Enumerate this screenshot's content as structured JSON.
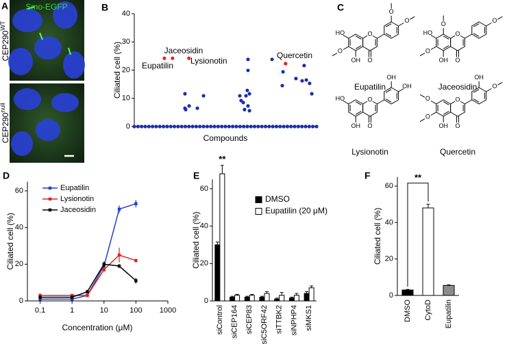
{
  "panel_labels": [
    "A",
    "B",
    "C",
    "D",
    "E",
    "F"
  ],
  "panel_a": {
    "stain": "Smo-EGFP",
    "rows": [
      {
        "gene": "CEP290",
        "genotype": "WT"
      },
      {
        "gene": "CEP290",
        "genotype": "null"
      }
    ]
  },
  "panel_c": {
    "molecules": [
      {
        "name": "Eupatilin",
        "atoms": [
          "HO",
          "O",
          "OH",
          "O",
          "O",
          "O",
          "O"
        ]
      },
      {
        "name": "Jaceosidin",
        "atoms": [
          "O",
          "HO",
          "O",
          "OH",
          "O",
          "O",
          "O"
        ]
      },
      {
        "name": "Lysionotin",
        "atoms": [
          "HO",
          "OH",
          "OH",
          "OH",
          "O",
          "O"
        ]
      },
      {
        "name": "Quercetin",
        "atoms": [
          "O",
          "O",
          "OH",
          "OH",
          "O",
          "O",
          "O"
        ]
      }
    ]
  },
  "chart_data": [
    {
      "type": "scatter",
      "ylabel": "Ciliated cell (%)",
      "xlabel": "Compounds",
      "xlim": [
        0,
        100
      ],
      "ylim": [
        0,
        40
      ],
      "yticks": [
        0,
        10,
        20,
        30,
        40
      ],
      "series": [
        {
          "color": "#1c2fa8",
          "x": [
            0,
            2,
            4,
            6,
            8,
            10,
            12,
            14,
            16,
            18,
            20,
            22,
            24,
            26,
            28,
            30,
            32,
            34,
            36,
            38,
            40,
            42,
            44,
            46,
            48,
            50,
            52,
            54,
            56,
            58,
            60,
            62,
            64,
            66,
            68,
            70,
            72,
            74,
            76,
            78,
            80,
            82,
            84,
            86,
            88,
            90,
            92,
            94,
            96,
            98,
            100,
            27.8,
            27.8,
            28.2,
            30.1,
            34.6,
            38,
            57.9,
            58.6,
            59.8,
            60.5,
            61.3,
            62,
            62.4,
            62.4,
            62.4,
            63.2,
            63.2,
            75.6,
            81.6,
            81.2,
            88.7,
            92.1,
            93.2,
            94.4,
            96.2,
            97.4
          ],
          "values": [
            0,
            0,
            0,
            0,
            0,
            0,
            0,
            0,
            0,
            0,
            0,
            0,
            0,
            0,
            0,
            0,
            0,
            0,
            0,
            0,
            0,
            0,
            0,
            0,
            0,
            0,
            0,
            0,
            0,
            0,
            0,
            0,
            0,
            0,
            0,
            0,
            0,
            0,
            0,
            0,
            0,
            0,
            0,
            0,
            0,
            0,
            0,
            0,
            0,
            0,
            0,
            11.6,
            6.5,
            6,
            7.3,
            6.5,
            10.9,
            10.9,
            9.2,
            8.5,
            6,
            10.9,
            12.8,
            23.8,
            19.9,
            7.3,
            5.6,
            11.6,
            23.8,
            19.4,
            14.5,
            17,
            16.2,
            21.6,
            16.5,
            15.3,
            11.6
          ]
        },
        {
          "color": "#e8202a",
          "x": [
            16.5,
            21,
            30,
            83
          ],
          "values": [
            24.2,
            24.2,
            24.2,
            22.3
          ]
        }
      ],
      "annotations": [
        "Jaceosidin",
        "Eupatilin",
        "Lysionotin",
        "Quercetin"
      ]
    },
    {
      "type": "line",
      "xlabel": "Concentration (μM)",
      "ylabel": "Ciliated cell (%)",
      "xscale": "log",
      "xlim": [
        0.04,
        1000
      ],
      "xticks": [
        0.1,
        1,
        10,
        100,
        1000
      ],
      "ylim": [
        0,
        65
      ],
      "yticks": [
        0,
        20,
        40,
        60
      ],
      "legend": "upper left",
      "x": [
        0.1,
        1,
        3,
        10,
        30,
        100
      ],
      "series": [
        {
          "name": "Eupatilin",
          "color": "#1f3fcf",
          "values": [
            1,
            1,
            3,
            19,
            50,
            53
          ],
          "errors": [
            0.5,
            0.5,
            0.5,
            1.5,
            2,
            2
          ]
        },
        {
          "name": "Lysionotin",
          "color": "#e02020",
          "values": [
            3,
            3,
            3,
            17,
            25,
            22
          ],
          "errors": [
            1,
            0.5,
            0.5,
            1,
            4,
            1
          ]
        },
        {
          "name": "Jaceosidin",
          "color": "#000000",
          "values": [
            2,
            2,
            5,
            20,
            19,
            11
          ],
          "errors": [
            0.5,
            0.5,
            1,
            1.5,
            1,
            1.5
          ]
        }
      ]
    },
    {
      "type": "bar",
      "ylabel": "Ciliated cell (%)",
      "categories": [
        "siControl",
        "siCEP164",
        "siCEP83",
        "siC5ORF42",
        "siTTBK2",
        "siNPHP4",
        "siMKS1"
      ],
      "ylim": [
        0,
        65
      ],
      "yticks": [
        0,
        20,
        40,
        60
      ],
      "legend": "upper right",
      "series": [
        {
          "name": "DMSO",
          "color": "#000000",
          "values": [
            30,
            2,
            2,
            2,
            1,
            1.5,
            4
          ],
          "errors": [
            1.5,
            0.5,
            0.5,
            0.5,
            0.5,
            0.5,
            1
          ]
        },
        {
          "name": "Eupatilin (20 μM)",
          "color": "#ffffff",
          "values": [
            68,
            3,
            3,
            4,
            3,
            3,
            7
          ],
          "errors": [
            4.5,
            0.5,
            0.5,
            1,
            1.5,
            1,
            1
          ]
        }
      ],
      "annotations": [
        "**"
      ]
    },
    {
      "type": "bar",
      "ylabel": "Ciliated cell (%)",
      "categories": [
        "DMSO",
        "CytoD",
        "Eupatilin"
      ],
      "values": [
        3,
        48,
        5.5
      ],
      "errors": [
        0.3,
        2,
        0.3
      ],
      "colors": [
        "#000000",
        "#ffffff",
        "#8c8c8c"
      ],
      "ylim": [
        0,
        65
      ],
      "yticks": [
        0,
        20,
        40,
        60
      ],
      "annotations": [
        "**"
      ]
    }
  ]
}
